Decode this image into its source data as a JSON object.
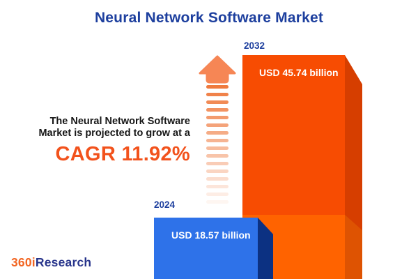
{
  "header": {
    "title": "Neural Network Software Market"
  },
  "annotation": {
    "line1": "The Neural Network Software",
    "line2": "Market is projected to grow at a",
    "cagr_label": "CAGR 11.92%"
  },
  "logo": {
    "brand_prefix": "360i",
    "brand_suffix": "Research"
  },
  "colors": {
    "title_blue": "#1d3f9e",
    "cagr_orange": "#f2521c",
    "bar_2024_front": "#2e72e9",
    "bar_2024_side": "#0c3182",
    "bar_2032_front": "#f74c02",
    "bar_2032_side": "#d63e00",
    "bar_2032_front_lower": "#ff6300",
    "bar_2032_side_lower": "#de5302",
    "arrow_head": "#f68655",
    "arrow_stripe": "#ef7a3e",
    "logo_orange": "#f26522",
    "logo_blue": "#27348b"
  },
  "chart_data": {
    "type": "bar",
    "title": "Neural Network Software Market",
    "categories": [
      "2024",
      "2032"
    ],
    "values": [
      18.57,
      45.74
    ],
    "unit": "USD billion",
    "value_labels": [
      "USD 18.57 billion",
      "USD 45.74 billion"
    ],
    "cagr_percent": 11.92,
    "xlabel": "",
    "ylabel": "",
    "axes_visible": false,
    "legend_position": "none",
    "orientation": "vertical",
    "style": "3d-infographic"
  }
}
